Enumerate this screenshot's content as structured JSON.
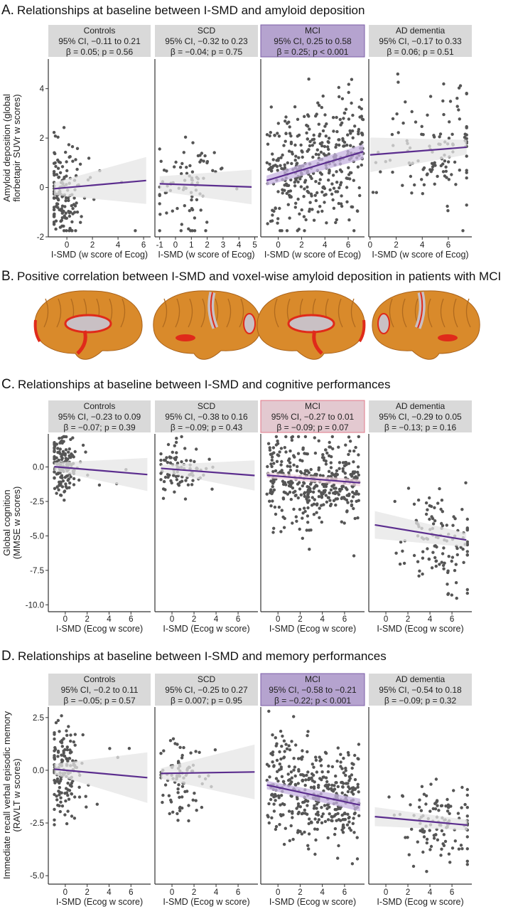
{
  "colors": {
    "point": "#555555",
    "line": "#5b2d8e",
    "band_gray": "#e6e6e6",
    "band_purple": "#c6b3e0",
    "band_pink": "#efd3dd",
    "strip_gray": "#d9d9d9",
    "strip_purple": "#b5a3cf",
    "strip_purple_border": "#7b5ea7",
    "strip_pink": "#e3c9d0",
    "strip_pink_border": "#e0788a",
    "brain": "#d98a2b",
    "brain_red": "#e02a1a",
    "brain_gray": "#c9c0c4"
  },
  "figure_b": {
    "title_letter": "B.",
    "title": "Positive correlation between I-SMD and voxel-wise amyloid deposition in patients with MCI"
  },
  "chart_data": [
    {
      "type": "scatter",
      "letter": "A.",
      "title": "Relationships at baseline between I-SMD and amyloid deposition",
      "ylabel": [
        "Amyloid deposition (global",
        "florbetapir SUVr w scores)"
      ],
      "ylim": [
        -2,
        5.2
      ],
      "yticks": [
        4,
        2,
        0,
        -2
      ],
      "panels": [
        {
          "name": "Controls",
          "ci": "95% CI, −0.11 to 0.21",
          "stat": "β = 0.05; p = 0.56",
          "highlight": "none",
          "xlabel": "I-SMD (w score of Ecog)",
          "xlim": [
            -1.45,
            6.55
          ],
          "xticks": [
            0,
            2,
            4,
            6
          ],
          "fit": [
            [
              -1,
              -0.05
            ],
            [
              6.2,
              0.28
            ]
          ],
          "band": [
            0.25,
            0.95
          ],
          "points": {
            "n": 150,
            "x_mean": -0.3,
            "x_sd": 0.6,
            "x_min": -1,
            "x_max": 6.2,
            "y_mean": 0,
            "y_sd": 1.0,
            "seed": 11
          }
        },
        {
          "name": "SCD",
          "ci": "95% CI, −0.32 to 0.23",
          "stat": "β = −0.04; p = 0.75",
          "highlight": "none",
          "xlabel": "I-SMD (w score of Ecog)",
          "xlim": [
            -1.3,
            5.2
          ],
          "xticks": [
            -1,
            0,
            1,
            2,
            3,
            4,
            5
          ],
          "fit": [
            [
              -1,
              0.15
            ],
            [
              4.8,
              0.02
            ]
          ],
          "band": [
            0.3,
            0.7
          ],
          "points": {
            "n": 85,
            "x_mean": 0.8,
            "x_sd": 1.1,
            "x_min": -1,
            "x_max": 4.8,
            "y_mean": 0.1,
            "y_sd": 0.9,
            "seed": 22
          }
        },
        {
          "name": "MCI",
          "ci": "95% CI, 0.25 to 0.58",
          "stat": "β = 0.25; p < 0.001",
          "highlight": "purple",
          "xlabel": "I-SMD (w score of Ecog)",
          "xlim": [
            -1.5,
            7.4
          ],
          "xticks": [
            0,
            2,
            4,
            6
          ],
          "fit": [
            [
              -1,
              0.28
            ],
            [
              7.3,
              1.45
            ]
          ],
          "band": [
            0.2,
            0.3
          ],
          "points": {
            "n": 380,
            "x_mean": 2.5,
            "x_sd": 2.4,
            "x_min": -1,
            "x_max": 7.3,
            "y_mean": 0.9,
            "y_sd": 1.25,
            "seed": 33
          }
        },
        {
          "name": "AD dementia",
          "ci": "95% CI, −0.17 to 0.33",
          "stat": "β = 0.06; p = 0.51",
          "highlight": "none",
          "xlabel": "I-SMD (w score of Ecog)",
          "xlim": [
            -0.1,
            7.8
          ],
          "xticks": [
            0,
            2,
            4,
            6
          ],
          "fit": [
            [
              0,
              1.32
            ],
            [
              7.4,
              1.63
            ]
          ],
          "band": [
            0.7,
            0.3
          ],
          "points": {
            "n": 120,
            "x_mean": 5,
            "x_sd": 1.8,
            "x_min": 0,
            "x_max": 7.4,
            "y_mean": 1.4,
            "y_sd": 1.3,
            "seed": 44
          }
        }
      ]
    },
    {
      "type": "scatter",
      "letter": "C.",
      "title": "Relationships at baseline between I-SMD and cognitive performances",
      "ylabel": [
        "Global cognition",
        "(MMSE w scores)"
      ],
      "ylim": [
        -10.5,
        2.4
      ],
      "yticks": [
        0.0,
        -2.5,
        -5.0,
        -7.5,
        -10.0
      ],
      "ytick_labels": [
        "0.0",
        "-2.5",
        "-5.0",
        "-7.5",
        "-10.0"
      ],
      "panels": [
        {
          "name": "Controls",
          "ci": "95% CI, −0.23 to 0.09",
          "stat": "β = −0.07; p = 0.39",
          "highlight": "none",
          "xlabel": "I-SMD (Ecog w score)",
          "xlim": [
            -1.55,
            7.8
          ],
          "xticks": [
            0,
            2,
            4,
            6
          ],
          "fit": [
            [
              -1,
              0.02
            ],
            [
              7.5,
              -0.55
            ]
          ],
          "band": [
            0.3,
            1.2
          ],
          "points": {
            "n": 150,
            "x_mean": -0.2,
            "x_sd": 0.7,
            "x_min": -1,
            "x_max": 6.3,
            "y_mean": -0.1,
            "y_sd": 1.0,
            "seed": 55
          }
        },
        {
          "name": "SCD",
          "ci": "95% CI, −0.38 to 0.16",
          "stat": "β = −0.09; p = 0.43",
          "highlight": "none",
          "xlabel": "I-SMD (Ecog w score)",
          "xlim": [
            -1.55,
            7.8
          ],
          "xticks": [
            0,
            2,
            4,
            6
          ],
          "fit": [
            [
              -1,
              -0.1
            ],
            [
              7.5,
              -0.62
            ]
          ],
          "band": [
            0.25,
            1.1
          ],
          "points": {
            "n": 85,
            "x_mean": 0.6,
            "x_sd": 1.0,
            "x_min": -1,
            "x_max": 4.8,
            "y_mean": -0.1,
            "y_sd": 0.9,
            "seed": 66
          }
        },
        {
          "name": "MCI",
          "ci": "95% CI, −0.27 to 0.01",
          "stat": "β = −0.09; p = 0.07",
          "highlight": "pink",
          "xlabel": "I-SMD (Ecog w score)",
          "xlim": [
            -1.55,
            7.8
          ],
          "xticks": [
            0,
            2,
            4,
            6
          ],
          "fit": [
            [
              -1,
              -0.6
            ],
            [
              7.4,
              -1.15
            ]
          ],
          "band": [
            0.2,
            0.25
          ],
          "points": {
            "n": 380,
            "x_mean": 2.5,
            "x_sd": 2.4,
            "x_min": -1,
            "x_max": 7.3,
            "y_mean": -1.0,
            "y_sd": 1.5,
            "seed": 77
          }
        },
        {
          "name": "AD dementia",
          "ci": "95% CI, −0.29 to 0.05",
          "stat": "β = −0.13; p = 0.16",
          "highlight": "none",
          "xlabel": "I-SMD (Ecog w score)",
          "xlim": [
            -1.55,
            7.8
          ],
          "xticks": [
            0,
            2,
            4,
            6
          ],
          "fit": [
            [
              -1,
              -4.2
            ],
            [
              7.3,
              -5.3
            ]
          ],
          "band": [
            1.0,
            0.5
          ],
          "points": {
            "n": 120,
            "x_mean": 5,
            "x_sd": 1.8,
            "x_min": 0,
            "x_max": 7.4,
            "y_mean": -5.0,
            "y_sd": 1.8,
            "seed": 88
          }
        }
      ]
    },
    {
      "type": "scatter",
      "letter": "D.",
      "title": "Relationships at baseline between I-SMD and memory performances",
      "ylabel": [
        "Immediate recall verbal episodic memory",
        "(RAVLT w scores)"
      ],
      "ylim": [
        -5.4,
        3.0
      ],
      "yticks": [
        2.5,
        0.0,
        -2.5,
        -5.0
      ],
      "ytick_labels": [
        "2.5",
        "0.0",
        "-2.5",
        "-5.0"
      ],
      "panels": [
        {
          "name": "Controls",
          "ci": "95% CI, −0.2 to 0.11",
          "stat": "β = −0.05; p = 0.57",
          "highlight": "none",
          "xlabel": "I-SMD (Ecog w score)",
          "xlim": [
            -1.55,
            7.8
          ],
          "xticks": [
            0,
            2,
            4,
            6
          ],
          "fit": [
            [
              -1,
              0.05
            ],
            [
              7.5,
              -0.35
            ]
          ],
          "band": [
            0.25,
            1.2
          ],
          "points": {
            "n": 150,
            "x_mean": -0.2,
            "x_sd": 0.7,
            "x_min": -1,
            "x_max": 6.3,
            "y_mean": 0,
            "y_sd": 1.05,
            "seed": 99
          }
        },
        {
          "name": "SCD",
          "ci": "95% CI, −0.25 to 0.27",
          "stat": "β = 0.007; p = 0.95",
          "highlight": "none",
          "xlabel": "I-SMD (Ecog w score)",
          "xlim": [
            -1.55,
            7.8
          ],
          "xticks": [
            0,
            2,
            4,
            6
          ],
          "fit": [
            [
              -1,
              -0.15
            ],
            [
              7.5,
              -0.08
            ]
          ],
          "band": [
            0.25,
            1.3
          ],
          "points": {
            "n": 85,
            "x_mean": 0.7,
            "x_sd": 1.0,
            "x_min": -1,
            "x_max": 4.8,
            "y_mean": -0.1,
            "y_sd": 1.0,
            "seed": 111
          }
        },
        {
          "name": "MCI",
          "ci": "95% CI, −0.58 to −0.21",
          "stat": "β = −0.22; p < 0.001",
          "highlight": "purple",
          "xlabel": "I-SMD (Ecog w score)",
          "xlim": [
            -1.55,
            7.8
          ],
          "xticks": [
            0,
            2,
            4,
            6
          ],
          "fit": [
            [
              -1,
              -0.7
            ],
            [
              7.4,
              -1.65
            ]
          ],
          "band": [
            0.2,
            0.3
          ],
          "points": {
            "n": 380,
            "x_mean": 2.5,
            "x_sd": 2.4,
            "x_min": -1,
            "x_max": 7.3,
            "y_mean": -1.1,
            "y_sd": 1.2,
            "seed": 122
          }
        },
        {
          "name": "AD dementia",
          "ci": "95% CI, −0.54 to 0.18",
          "stat": "β = −0.09; p = 0.32",
          "highlight": "none",
          "xlabel": "I-SMD (Ecog w score)",
          "xlim": [
            -1.55,
            7.8
          ],
          "xticks": [
            0,
            2,
            4,
            6
          ],
          "fit": [
            [
              -1,
              -2.2
            ],
            [
              7.4,
              -2.6
            ]
          ],
          "band": [
            0.45,
            0.25
          ],
          "points": {
            "n": 120,
            "x_mean": 5,
            "x_sd": 1.8,
            "x_min": 0,
            "x_max": 7.4,
            "y_mean": -2.5,
            "y_sd": 0.9,
            "seed": 133
          }
        }
      ]
    }
  ]
}
